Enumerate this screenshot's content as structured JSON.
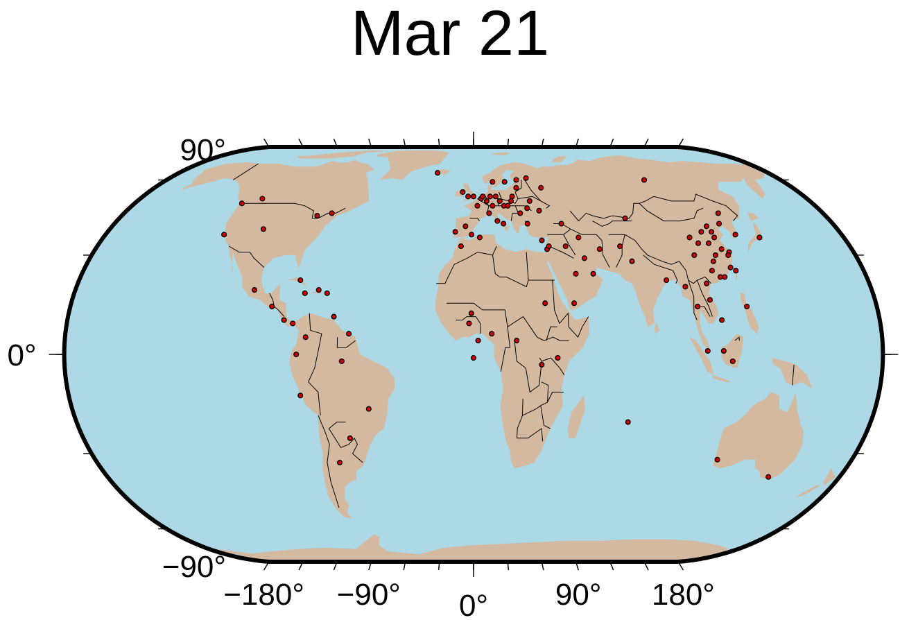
{
  "title": "Mar 21",
  "colors": {
    "ocean": "#add8e6",
    "land": "#d2b9a0",
    "border": "#000000",
    "frame": "#000000",
    "marker_fill": "#cc0000",
    "marker_stroke": "#000000"
  },
  "projection": "robinson-like",
  "lat_ticks": [
    {
      "label": "90°",
      "value": 90
    },
    {
      "label": "0°",
      "value": 0
    },
    {
      "label": "−90°",
      "value": -90
    }
  ],
  "lon_ticks": [
    {
      "label": "−180°",
      "value": -180
    },
    {
      "label": "−90°",
      "value": -90
    },
    {
      "label": "0°",
      "value": 0
    },
    {
      "label": "90°",
      "value": 90
    },
    {
      "label": "180°",
      "value": 180
    }
  ],
  "markers": [
    [
      -123,
      49
    ],
    [
      -114,
      51
    ],
    [
      -80,
      44
    ],
    [
      -73,
      45
    ],
    [
      -104,
      39
    ],
    [
      -122,
      37
    ],
    [
      -99,
      19
    ],
    [
      -90,
      14
    ],
    [
      -79,
      22
    ],
    [
      -76,
      18
    ],
    [
      -70,
      19
    ],
    [
      -62,
      11
    ],
    [
      -84,
      10
    ],
    [
      -80,
      9
    ],
    [
      -66,
      18
    ],
    [
      -74,
      5
    ],
    [
      -78,
      0
    ],
    [
      -77,
      -12
    ],
    [
      -58,
      -2
    ],
    [
      -47,
      -16
    ],
    [
      -57,
      -25
    ],
    [
      -64,
      -33
    ],
    [
      -55,
      6
    ],
    [
      -22,
      64
    ],
    [
      -6,
      54
    ],
    [
      -3,
      52
    ],
    [
      -9,
      38
    ],
    [
      -4,
      40
    ],
    [
      -1,
      37
    ],
    [
      0,
      52
    ],
    [
      2,
      48
    ],
    [
      4,
      51
    ],
    [
      5,
      52
    ],
    [
      7,
      50
    ],
    [
      9,
      52
    ],
    [
      10,
      48
    ],
    [
      12,
      52
    ],
    [
      14,
      50
    ],
    [
      16,
      48
    ],
    [
      18,
      48
    ],
    [
      20,
      50
    ],
    [
      21,
      52
    ],
    [
      24,
      56
    ],
    [
      24,
      45
    ],
    [
      12,
      42
    ],
    [
      15,
      41
    ],
    [
      8,
      45
    ],
    [
      11,
      59
    ],
    [
      18,
      59
    ],
    [
      25,
      60
    ],
    [
      31,
      61
    ],
    [
      38,
      56
    ],
    [
      30,
      50
    ],
    [
      28,
      47
    ],
    [
      34,
      46
    ],
    [
      27,
      41
    ],
    [
      44,
      41
    ],
    [
      33,
      35
    ],
    [
      35,
      32
    ],
    [
      36,
      33
    ],
    [
      44,
      33
    ],
    [
      51,
      36
    ],
    [
      60,
      32
    ],
    [
      52,
      29
    ],
    [
      47,
      24
    ],
    [
      55,
      24
    ],
    [
      45,
      15
    ],
    [
      32,
      15
    ],
    [
      -6,
      33
    ],
    [
      3,
      36
    ],
    [
      -1,
      12
    ],
    [
      -2,
      9
    ],
    [
      0,
      -1
    ],
    [
      8,
      6
    ],
    [
      2,
      4
    ],
    [
      19,
      4
    ],
    [
      30,
      -3
    ],
    [
      70,
      -20
    ],
    [
      37,
      -1
    ],
    [
      100,
      60
    ],
    [
      77,
      43
    ],
    [
      70,
      33
    ],
    [
      74,
      28
    ],
    [
      88,
      22
    ],
    [
      104,
      30
    ],
    [
      108,
      34
    ],
    [
      113,
      34
    ],
    [
      116,
      40
    ],
    [
      117,
      38
    ],
    [
      123,
      41
    ],
    [
      126,
      45
    ],
    [
      121,
      31
    ],
    [
      120,
      30
    ],
    [
      118,
      32
    ],
    [
      114,
      30
    ],
    [
      112,
      28
    ],
    [
      110,
      25
    ],
    [
      113,
      23
    ],
    [
      115,
      23
    ],
    [
      119,
      26
    ],
    [
      121,
      25
    ],
    [
      117,
      36
    ],
    [
      112,
      38
    ],
    [
      105,
      36
    ],
    [
      96,
      20
    ],
    [
      100,
      14
    ],
    [
      106,
      21
    ],
    [
      106,
      16
    ],
    [
      110,
      10
    ],
    [
      122,
      14
    ],
    [
      103,
      1
    ],
    [
      110,
      1
    ],
    [
      114,
      -2
    ],
    [
      139,
      36
    ],
    [
      128,
      37
    ],
    [
      116,
      -32
    ],
    [
      145,
      -38
    ]
  ]
}
